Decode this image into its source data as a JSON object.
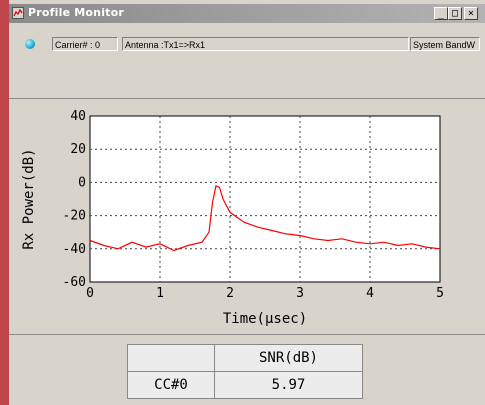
{
  "window": {
    "title": "Profile Monitor",
    "min_label": "_",
    "max_label": "□",
    "close_label": "×"
  },
  "info": {
    "carrier": "Carrier# : 0",
    "antenna": "Antenna :Tx1=>Rx1",
    "system": "System BandW"
  },
  "chart_data": {
    "type": "line",
    "xlabel": "Time(μsec)",
    "ylabel": "Rx Power(dB)",
    "xlim": [
      0,
      5
    ],
    "ylim": [
      -60,
      40
    ],
    "x_ticks": [
      0,
      1,
      2,
      3,
      4,
      5
    ],
    "y_ticks": [
      40,
      20,
      0,
      -20,
      -40,
      -60
    ],
    "grid": true,
    "series_color": "#ff0000",
    "series": [
      {
        "x": [
          0,
          0.2,
          0.4,
          0.6,
          0.8,
          1.0,
          1.2,
          1.4,
          1.6,
          1.7,
          1.75,
          1.8,
          1.85,
          1.9,
          2.0,
          2.2,
          2.4,
          2.6,
          2.8,
          3.0,
          3.2,
          3.4,
          3.6,
          3.8,
          4.0,
          4.2,
          4.4,
          4.6,
          4.8,
          5.0
        ],
        "values": [
          -35,
          -38,
          -40,
          -36,
          -39,
          -37,
          -41,
          -38,
          -36,
          -30,
          -12,
          -2,
          -3,
          -10,
          -18,
          -24,
          -27,
          -29,
          -31,
          -32,
          -34,
          -35,
          -34,
          -36,
          -37,
          -36,
          -38,
          -37,
          -39,
          -40
        ]
      }
    ]
  },
  "snr_table": {
    "header": "SNR(dB)",
    "row_label": "CC#0",
    "row_value": "5.97"
  }
}
